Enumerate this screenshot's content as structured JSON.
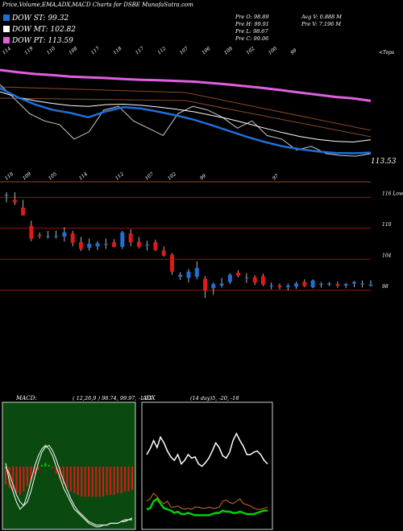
{
  "header": {
    "title": "Price,Volume,EMA,ADX,MACD Charts for DSBE MunafaSutra.com",
    "stats": {
      "prev_open": "Pre  O: 98.89",
      "prev_high": "Pre  H: 99.91",
      "prev_low": "Pre  L: 98.67",
      "prev_close": "Pre  C: 99.06",
      "avg_volume": "Avg V: 0.888  M",
      "prev_volume": "Pre  V: 7.196  M"
    },
    "legend": [
      {
        "label": "DOW ST: 99.32",
        "color": "#1f6fd8"
      },
      {
        "label": "DOW MT: 102.82",
        "color": "#ffffff"
      },
      {
        "label": "DOW PT: 113.59",
        "color": "#e060e0"
      }
    ]
  },
  "colors": {
    "st": "#1f6fd8",
    "mt": "#ffffff",
    "pt": "#e060e0",
    "up": "#1f6fd8",
    "down": "#e01818",
    "red_line": "#a01010",
    "orange": "#d07020",
    "green": "#00d000"
  },
  "chart_data": [
    {
      "type": "line",
      "title": "",
      "top_labels": [
        "114",
        "119",
        "110",
        "108",
        "117",
        "118",
        "117",
        "112",
        "107",
        "106",
        "108",
        "102",
        "100",
        "99"
      ],
      "bottom_labels": [
        "118",
        "109",
        "105",
        "114",
        "112",
        "107",
        "102",
        "99",
        "97"
      ],
      "top_right_label": "<Tops",
      "price_label": "113.53",
      "series": [
        {
          "name": "DOW PT",
          "values": [
            122,
            121.4,
            120.9,
            120.6,
            120.2,
            120,
            119.8,
            119.5,
            119.3,
            119.2,
            119,
            118.8,
            118.4,
            118,
            117.5,
            117,
            116.4,
            115.8,
            115.2,
            114.6,
            114.2,
            113.5
          ]
        },
        {
          "name": "DOW MT",
          "values": [
            116,
            114.5,
            113.5,
            112.8,
            112.2,
            112,
            112.5,
            112.6,
            112.3,
            111.8,
            111.2,
            110.5,
            109.5,
            108.5,
            107.3,
            106,
            104.8,
            103.7,
            102.9,
            102.4,
            102.2,
            102.8
          ]
        },
        {
          "name": "DOW ST",
          "values": [
            117,
            114.5,
            112.5,
            111,
            110.2,
            109,
            110.6,
            111.8,
            111.4,
            110.5,
            109.5,
            108.3,
            106.8,
            105.2,
            103.6,
            102.2,
            101,
            100.2,
            99.6,
            99.2,
            99.1,
            99.3
          ]
        }
      ]
    },
    {
      "type": "candlestick",
      "title": "",
      "y_tick_labels": [
        "116 Lows",
        "110",
        "104",
        "98"
      ],
      "candles": [
        {
          "o": 116.5,
          "h": 117,
          "l": 115,
          "c": 116.5
        },
        {
          "o": 115.5,
          "h": 117,
          "l": 114.5,
          "c": 115
        },
        {
          "o": 114,
          "h": 115.5,
          "l": 112.5,
          "c": 112.5
        },
        {
          "o": 110.5,
          "h": 111.5,
          "l": 107.5,
          "c": 108
        },
        {
          "o": 108.7,
          "h": 109.2,
          "l": 108,
          "c": 108.5
        },
        {
          "o": 108.5,
          "h": 109.5,
          "l": 108,
          "c": 108.5
        },
        {
          "o": 108.5,
          "h": 109.5,
          "l": 108,
          "c": 108.5
        },
        {
          "o": 108.4,
          "h": 110.2,
          "l": 107.4,
          "c": 109.2
        },
        {
          "o": 109,
          "h": 109.5,
          "l": 106.5,
          "c": 107.2
        },
        {
          "o": 107.3,
          "h": 108.3,
          "l": 105.6,
          "c": 106
        },
        {
          "o": 106.2,
          "h": 108,
          "l": 105.7,
          "c": 107
        },
        {
          "o": 106.5,
          "h": 107.5,
          "l": 105.8,
          "c": 107.1
        },
        {
          "o": 107,
          "h": 108,
          "l": 106,
          "c": 107
        },
        {
          "o": 107.3,
          "h": 107.9,
          "l": 106.3,
          "c": 106.4
        },
        {
          "o": 106.4,
          "h": 109.5,
          "l": 106,
          "c": 109.2
        },
        {
          "o": 109,
          "h": 109.8,
          "l": 106.5,
          "c": 107.3
        },
        {
          "o": 107.4,
          "h": 108.3,
          "l": 106.1,
          "c": 106.4
        },
        {
          "o": 106.8,
          "h": 107.6,
          "l": 105.7,
          "c": 106.8
        },
        {
          "o": 107.3,
          "h": 107.8,
          "l": 105.6,
          "c": 105.8
        },
        {
          "o": 105.7,
          "h": 106.5,
          "l": 104.5,
          "c": 104.7
        },
        {
          "o": 104.9,
          "h": 105.2,
          "l": 101,
          "c": 101.6
        },
        {
          "o": 100.6,
          "h": 101.5,
          "l": 100,
          "c": 101
        },
        {
          "o": 100.4,
          "h": 102.1,
          "l": 99.5,
          "c": 101.6
        },
        {
          "o": 100.6,
          "h": 103.6,
          "l": 100.1,
          "c": 102.3
        },
        {
          "o": 100.2,
          "h": 100.7,
          "l": 96.5,
          "c": 97.9
        },
        {
          "o": 98.4,
          "h": 99.5,
          "l": 97.1,
          "c": 99.2
        },
        {
          "o": 98.9,
          "h": 100.4,
          "l": 98.5,
          "c": 99.3
        },
        {
          "o": 99.6,
          "h": 101.3,
          "l": 99.2,
          "c": 101
        },
        {
          "o": 101.4,
          "h": 101.9,
          "l": 100.5,
          "c": 100.8
        },
        {
          "o": 100.5,
          "h": 101.3,
          "l": 99.4,
          "c": 100.5
        },
        {
          "o": 100.5,
          "h": 100.9,
          "l": 99,
          "c": 99.5
        },
        {
          "o": 100.7,
          "h": 101.2,
          "l": 98.8,
          "c": 99.1
        },
        {
          "o": 98.8,
          "h": 99.5,
          "l": 98.2,
          "c": 98.9
        },
        {
          "o": 98.9,
          "h": 99.3,
          "l": 98.2,
          "c": 98.6
        },
        {
          "o": 98.6,
          "h": 99.3,
          "l": 98,
          "c": 98.9
        },
        {
          "o": 98.7,
          "h": 99.7,
          "l": 98.3,
          "c": 99.3
        },
        {
          "o": 99.6,
          "h": 100.1,
          "l": 98.6,
          "c": 98.8
        },
        {
          "o": 98.6,
          "h": 100.1,
          "l": 98.4,
          "c": 99.9
        },
        {
          "o": 99.2,
          "h": 99.6,
          "l": 98.5,
          "c": 99.2
        },
        {
          "o": 99.1,
          "h": 99.6,
          "l": 98.8,
          "c": 99.3
        },
        {
          "o": 99.2,
          "h": 99.7,
          "l": 98.5,
          "c": 98.9
        },
        {
          "o": 98.9,
          "h": 99.4,
          "l": 98.4,
          "c": 99.2
        },
        {
          "o": 99.3,
          "h": 99.8,
          "l": 98.6,
          "c": 99.6
        },
        {
          "o": 99.3,
          "h": 99.9,
          "l": 98.5,
          "c": 99.3
        },
        {
          "o": 98.9,
          "h": 99.9,
          "l": 98.7,
          "c": 99.1
        }
      ]
    },
    {
      "type": "bar",
      "title": "MACD:",
      "params": "( 12,26,9 ) 98.74,  99.97, -1.23",
      "histogram": [
        -10,
        -12,
        -14,
        -15,
        -16,
        -14,
        -11,
        -8,
        -4,
        -2,
        1,
        2,
        1,
        -1,
        -4,
        -7,
        -10,
        -12,
        -14,
        -15,
        -16,
        -17,
        -17,
        -17,
        -17,
        -17,
        -17,
        -17,
        -16,
        -16,
        -16,
        -15,
        -15,
        -14,
        -14,
        -13
      ],
      "series": [
        {
          "name": "MACD",
          "values": [
            2,
            -8,
            -14,
            -20,
            -24,
            -22,
            -16,
            -8,
            0,
            6,
            10,
            12,
            10,
            6,
            0,
            -6,
            -12,
            -16,
            -20,
            -24,
            -26,
            -28,
            -30,
            -32,
            -33,
            -34,
            -34,
            -33,
            -33,
            -32,
            -32,
            -32,
            -31,
            -30,
            -30,
            -29
          ]
        },
        {
          "name": "Signal",
          "values": [
            0,
            -4,
            -10,
            -16,
            -20,
            -22,
            -20,
            -14,
            -6,
            2,
            8,
            11,
            12,
            9,
            4,
            -2,
            -8,
            -13,
            -18,
            -22,
            -25,
            -27,
            -29,
            -31,
            -32,
            -33,
            -33,
            -33,
            -33,
            -32,
            -32,
            -32,
            -31,
            -31,
            -30,
            -30
          ]
        }
      ]
    },
    {
      "type": "line",
      "title": "ADX",
      "params": "(14 day)5, -20, -18",
      "series": [
        {
          "name": "ADX",
          "values": [
            60,
            65,
            72,
            66,
            75,
            70,
            63,
            58,
            55,
            60,
            52,
            55,
            60,
            57,
            58,
            52,
            50,
            53,
            57,
            63,
            70,
            66,
            59,
            57,
            62,
            72,
            78,
            72,
            67,
            60,
            60,
            62,
            63,
            60,
            55,
            52
          ]
        },
        {
          "name": "+DI",
          "values": [
            20,
            22,
            27,
            24,
            20,
            18,
            20,
            15,
            15,
            16,
            14,
            13,
            14,
            13,
            15,
            15,
            14,
            14,
            15,
            14,
            14,
            15,
            20,
            21,
            19,
            18,
            20,
            22,
            18,
            17,
            16,
            14,
            13,
            13,
            14,
            15
          ]
        },
        {
          "name": "-DI",
          "values": [
            13,
            14,
            20,
            22,
            18,
            14,
            13,
            12,
            10,
            11,
            9,
            9,
            10,
            9,
            8,
            8,
            8,
            8,
            8,
            9,
            10,
            10,
            12,
            11,
            11,
            10,
            10,
            11,
            10,
            9,
            9,
            9,
            10,
            11,
            12,
            12
          ]
        }
      ]
    }
  ]
}
